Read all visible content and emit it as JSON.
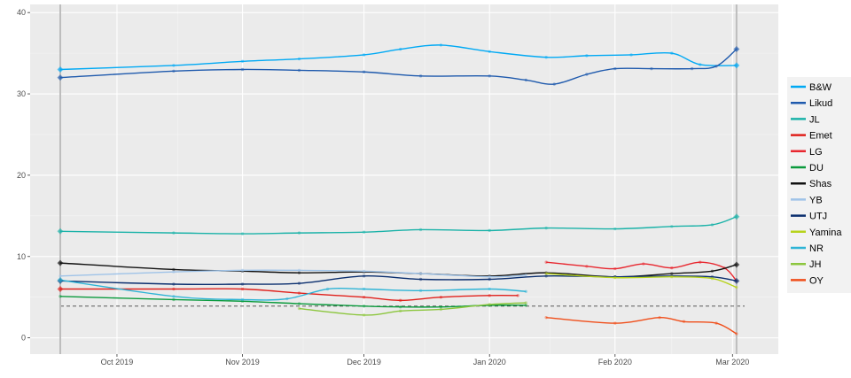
{
  "chart_data": {
    "type": "line",
    "title": "",
    "xlabel": "",
    "ylabel": "",
    "x_range": [
      "2019-09-17",
      "2020-03-04"
    ],
    "ylim": [
      -2,
      41
    ],
    "y_ticks": [
      0,
      10,
      20,
      30,
      40
    ],
    "x_ticks": [
      {
        "date": "2019-10-01",
        "label": "Oct 2019"
      },
      {
        "date": "2019-11-01",
        "label": "Nov 2019"
      },
      {
        "date": "2019-12-01",
        "label": "Dec 2019"
      },
      {
        "date": "2020-01-01",
        "label": "Jan 2020"
      },
      {
        "date": "2020-02-01",
        "label": "Feb 2020"
      },
      {
        "date": "2020-03-01",
        "label": "Mar 2020"
      }
    ],
    "grid": true,
    "panel_background": "#ebebeb",
    "threshold_line": {
      "value": 3.9,
      "style": "dashed",
      "color": "#444444"
    },
    "election_markers": [
      "2019-09-17",
      "2020-03-02"
    ],
    "legend_position": "right",
    "series": [
      {
        "name": "B&W",
        "color": "#00a9f4",
        "points": [
          [
            "2019-09-17",
            33.0
          ],
          [
            "2019-10-15",
            33.5
          ],
          [
            "2019-11-01",
            34.0
          ],
          [
            "2019-11-15",
            34.3
          ],
          [
            "2019-12-01",
            34.8
          ],
          [
            "2019-12-10",
            35.5
          ],
          [
            "2019-12-20",
            36.0
          ],
          [
            "2020-01-01",
            35.2
          ],
          [
            "2020-01-15",
            34.5
          ],
          [
            "2020-01-25",
            34.7
          ],
          [
            "2020-02-05",
            34.8
          ],
          [
            "2020-02-15",
            35.0
          ],
          [
            "2020-02-22",
            33.6
          ],
          [
            "2020-03-02",
            33.5
          ]
        ]
      },
      {
        "name": "Likud",
        "color": "#1f5aad",
        "points": [
          [
            "2019-09-17",
            32.0
          ],
          [
            "2019-10-15",
            32.8
          ],
          [
            "2019-11-01",
            33.0
          ],
          [
            "2019-11-15",
            32.9
          ],
          [
            "2019-12-01",
            32.7
          ],
          [
            "2019-12-15",
            32.2
          ],
          [
            "2020-01-01",
            32.2
          ],
          [
            "2020-01-10",
            31.7
          ],
          [
            "2020-01-17",
            31.2
          ],
          [
            "2020-01-25",
            32.4
          ],
          [
            "2020-02-01",
            33.1
          ],
          [
            "2020-02-10",
            33.1
          ],
          [
            "2020-02-20",
            33.1
          ],
          [
            "2020-02-26",
            33.4
          ],
          [
            "2020-03-02",
            35.5
          ]
        ]
      },
      {
        "name": "JL",
        "color": "#1ab2a8",
        "points": [
          [
            "2019-09-17",
            13.1
          ],
          [
            "2019-10-15",
            12.9
          ],
          [
            "2019-11-01",
            12.8
          ],
          [
            "2019-11-15",
            12.9
          ],
          [
            "2019-12-01",
            13.0
          ],
          [
            "2019-12-15",
            13.3
          ],
          [
            "2020-01-01",
            13.2
          ],
          [
            "2020-01-15",
            13.5
          ],
          [
            "2020-02-01",
            13.4
          ],
          [
            "2020-02-15",
            13.7
          ],
          [
            "2020-02-25",
            13.9
          ],
          [
            "2020-03-02",
            14.9
          ]
        ]
      },
      {
        "name": "Emet",
        "color": "#e0201b",
        "points": [
          [
            "2019-09-17",
            6.0
          ],
          [
            "2019-10-15",
            6.0
          ],
          [
            "2019-11-01",
            6.0
          ],
          [
            "2019-11-15",
            5.5
          ],
          [
            "2019-12-01",
            5.0
          ],
          [
            "2019-12-10",
            4.6
          ],
          [
            "2019-12-20",
            5.0
          ],
          [
            "2020-01-01",
            5.2
          ],
          [
            "2020-01-08",
            5.2
          ]
        ]
      },
      {
        "name": "LG",
        "color": "#e8272f",
        "points": [
          [
            "2020-01-15",
            9.3
          ],
          [
            "2020-01-25",
            8.8
          ],
          [
            "2020-02-01",
            8.5
          ],
          [
            "2020-02-08",
            9.1
          ],
          [
            "2020-02-15",
            8.6
          ],
          [
            "2020-02-22",
            9.3
          ],
          [
            "2020-02-28",
            8.6
          ],
          [
            "2020-03-02",
            7.0
          ]
        ]
      },
      {
        "name": "DU",
        "color": "#0a9a3c",
        "points": [
          [
            "2019-09-17",
            5.1
          ],
          [
            "2019-10-15",
            4.7
          ],
          [
            "2019-11-01",
            4.5
          ],
          [
            "2019-11-15",
            4.2
          ],
          [
            "2019-12-01",
            3.9
          ],
          [
            "2019-12-10",
            3.8
          ],
          [
            "2019-12-20",
            3.8
          ],
          [
            "2020-01-01",
            4.0
          ],
          [
            "2020-01-10",
            4.0
          ]
        ]
      },
      {
        "name": "Shas",
        "color": "#111111",
        "points": [
          [
            "2019-09-17",
            9.2
          ],
          [
            "2019-10-15",
            8.4
          ],
          [
            "2019-11-01",
            8.2
          ],
          [
            "2019-11-15",
            8.0
          ],
          [
            "2019-12-01",
            8.1
          ],
          [
            "2019-12-15",
            7.9
          ],
          [
            "2020-01-01",
            7.6
          ],
          [
            "2020-01-15",
            8.0
          ],
          [
            "2020-02-01",
            7.5
          ],
          [
            "2020-02-15",
            7.9
          ],
          [
            "2020-02-25",
            8.2
          ],
          [
            "2020-03-02",
            9.0
          ]
        ]
      },
      {
        "name": "YB",
        "color": "#9fc3e8",
        "points": [
          [
            "2019-09-17",
            7.6
          ],
          [
            "2019-10-15",
            8.1
          ],
          [
            "2019-11-01",
            8.3
          ],
          [
            "2019-11-15",
            8.3
          ],
          [
            "2019-12-01",
            8.2
          ],
          [
            "2019-12-15",
            7.9
          ],
          [
            "2020-01-01",
            7.5
          ],
          [
            "2020-01-10",
            7.7
          ]
        ]
      },
      {
        "name": "UTJ",
        "color": "#0a2e6e",
        "points": [
          [
            "2019-09-17",
            7.0
          ],
          [
            "2019-10-15",
            6.6
          ],
          [
            "2019-11-01",
            6.6
          ],
          [
            "2019-11-15",
            6.7
          ],
          [
            "2019-12-01",
            7.6
          ],
          [
            "2019-12-15",
            7.2
          ],
          [
            "2020-01-01",
            7.2
          ],
          [
            "2020-01-15",
            7.6
          ],
          [
            "2020-02-01",
            7.5
          ],
          [
            "2020-02-15",
            7.6
          ],
          [
            "2020-02-25",
            7.5
          ],
          [
            "2020-03-02",
            7.0
          ]
        ]
      },
      {
        "name": "Yamina",
        "color": "#b7d31c",
        "points": [
          [
            "2020-01-15",
            7.9
          ],
          [
            "2020-02-01",
            7.4
          ],
          [
            "2020-02-15",
            7.5
          ],
          [
            "2020-02-25",
            7.3
          ],
          [
            "2020-03-02",
            6.2
          ]
        ]
      },
      {
        "name": "NR",
        "color": "#2eb4d6",
        "points": [
          [
            "2019-09-17",
            7.1
          ],
          [
            "2019-10-15",
            5.1
          ],
          [
            "2019-11-01",
            4.7
          ],
          [
            "2019-11-12",
            4.8
          ],
          [
            "2019-11-22",
            6.0
          ],
          [
            "2019-12-01",
            6.0
          ],
          [
            "2019-12-15",
            5.8
          ],
          [
            "2020-01-01",
            6.0
          ],
          [
            "2020-01-10",
            5.7
          ]
        ]
      },
      {
        "name": "JH",
        "color": "#8cc63e",
        "points": [
          [
            "2019-11-15",
            3.6
          ],
          [
            "2019-12-01",
            2.8
          ],
          [
            "2019-12-10",
            3.3
          ],
          [
            "2019-12-20",
            3.5
          ],
          [
            "2020-01-01",
            4.1
          ],
          [
            "2020-01-10",
            4.3
          ]
        ]
      },
      {
        "name": "OY",
        "color": "#f04e1a",
        "points": [
          [
            "2020-01-15",
            2.5
          ],
          [
            "2020-02-01",
            1.8
          ],
          [
            "2020-02-12",
            2.5
          ],
          [
            "2020-02-18",
            2.0
          ],
          [
            "2020-02-26",
            1.8
          ],
          [
            "2020-03-02",
            0.5
          ]
        ]
      }
    ]
  }
}
